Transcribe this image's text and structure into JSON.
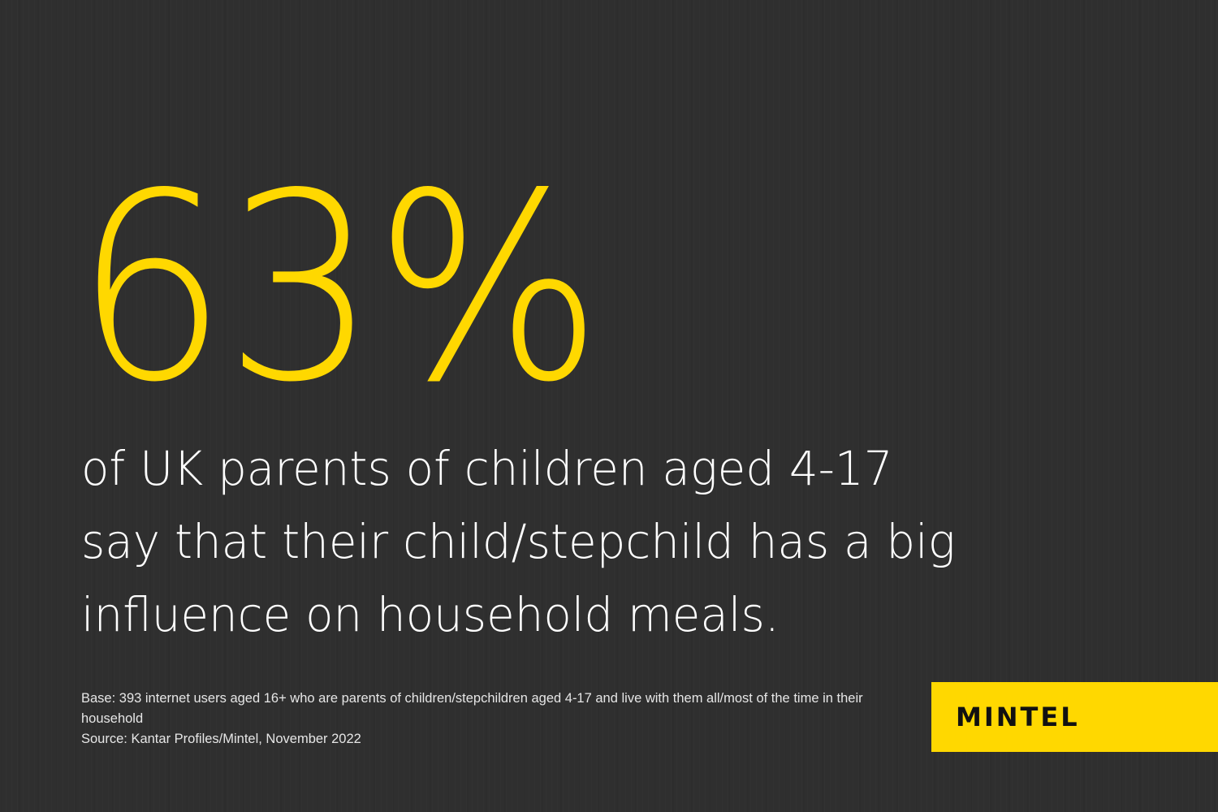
{
  "stat": {
    "value": "63%",
    "color": "#ffd800"
  },
  "headline": {
    "line1": "of UK parents of children aged 4-17",
    "line2": "say that their child/stepchild has a big",
    "line3": "influence on household meals."
  },
  "notes": {
    "base": "Base: 393 internet users aged 16+ who are parents of children/stepchildren aged 4-17 and live with them all/most of the time in their household",
    "source": "Source: Kantar Profiles/Mintel, November 2022"
  },
  "brand": {
    "logo_text": "MINTEL",
    "accent": "#ffd800",
    "background": "#2f2f2f"
  }
}
